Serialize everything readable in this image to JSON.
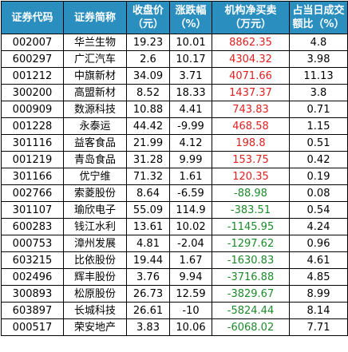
{
  "headers": [
    {
      "line1": "证券代码",
      "line2": ""
    },
    {
      "line1": "证券简称",
      "line2": ""
    },
    {
      "line1": "收盘价",
      "line2": "（元）"
    },
    {
      "line1": "涨跌幅",
      "line2": "（%）"
    },
    {
      "line1": "机构净买卖",
      "line2": "（万元）"
    },
    {
      "line1": "占当日成交",
      "line2": "额比（%）"
    }
  ],
  "colors": {
    "header_bg": "#2a8fbf",
    "header_text": "#ffffff",
    "positive": "#e02020",
    "negative": "#1c8a2a"
  },
  "rows": [
    {
      "code": "002007",
      "name": "华兰生物",
      "close": "19.23",
      "change": "10.01",
      "net": "8862.35",
      "ratio": "4.8",
      "sign": "positive"
    },
    {
      "code": "600297",
      "name": "广汇汽车",
      "close": "2.6",
      "change": "10.17",
      "net": "4304.32",
      "ratio": "3.98",
      "sign": "positive"
    },
    {
      "code": "001212",
      "name": "中旗新材",
      "close": "34.09",
      "change": "3.71",
      "net": "4071.66",
      "ratio": "11.13",
      "sign": "positive"
    },
    {
      "code": "300200",
      "name": "高盟新材",
      "close": "8.52",
      "change": "18.33",
      "net": "1437.37",
      "ratio": "3.8",
      "sign": "positive"
    },
    {
      "code": "000909",
      "name": "数源科技",
      "close": "10.88",
      "change": "4.41",
      "net": "743.83",
      "ratio": "0.71",
      "sign": "positive"
    },
    {
      "code": "001228",
      "name": "永泰运",
      "close": "44.42",
      "change": "-9.99",
      "net": "468.58",
      "ratio": "1.15",
      "sign": "positive"
    },
    {
      "code": "301116",
      "name": "益客食品",
      "close": "21.99",
      "change": "4.12",
      "net": "198.8",
      "ratio": "0.51",
      "sign": "positive"
    },
    {
      "code": "001219",
      "name": "青岛食品",
      "close": "31.28",
      "change": "9.99",
      "net": "153.75",
      "ratio": "0.42",
      "sign": "positive"
    },
    {
      "code": "301166",
      "name": "优宁维",
      "close": "71.32",
      "change": "1.61",
      "net": "120.35",
      "ratio": "0.19",
      "sign": "positive"
    },
    {
      "code": "002766",
      "name": "索菱股份",
      "close": "8.64",
      "change": "-6.59",
      "net": "-88.98",
      "ratio": "0.08",
      "sign": "negative"
    },
    {
      "code": "301107",
      "name": "瑜欣电子",
      "close": "55.09",
      "change": "114.9",
      "net": "-383.51",
      "ratio": "0.54",
      "sign": "negative"
    },
    {
      "code": "600283",
      "name": "钱江水利",
      "close": "13.61",
      "change": "10.02",
      "net": "-1145.95",
      "ratio": "4.24",
      "sign": "negative"
    },
    {
      "code": "000753",
      "name": "漳州发展",
      "close": "4.81",
      "change": "-2.04",
      "net": "-1297.62",
      "ratio": "0.96",
      "sign": "negative"
    },
    {
      "code": "603215",
      "name": "比依股份",
      "close": "19.44",
      "change": "1.67",
      "net": "-1630.83",
      "ratio": "4.61",
      "sign": "negative"
    },
    {
      "code": "002496",
      "name": "辉丰股份",
      "close": "3.76",
      "change": "9.94",
      "net": "-3716.88",
      "ratio": "4.85",
      "sign": "negative"
    },
    {
      "code": "300893",
      "name": "松原股份",
      "close": "26.73",
      "change": "12.59",
      "net": "-3829.67",
      "ratio": "8.99",
      "sign": "negative"
    },
    {
      "code": "603897",
      "name": "长城科技",
      "close": "26.61",
      "change": "-10",
      "net": "-5824.44",
      "ratio": "8.14",
      "sign": "negative"
    },
    {
      "code": "000517",
      "name": "荣安地产",
      "close": "3.83",
      "change": "10.06",
      "net": "-6068.02",
      "ratio": "7.71",
      "sign": "negative"
    }
  ]
}
